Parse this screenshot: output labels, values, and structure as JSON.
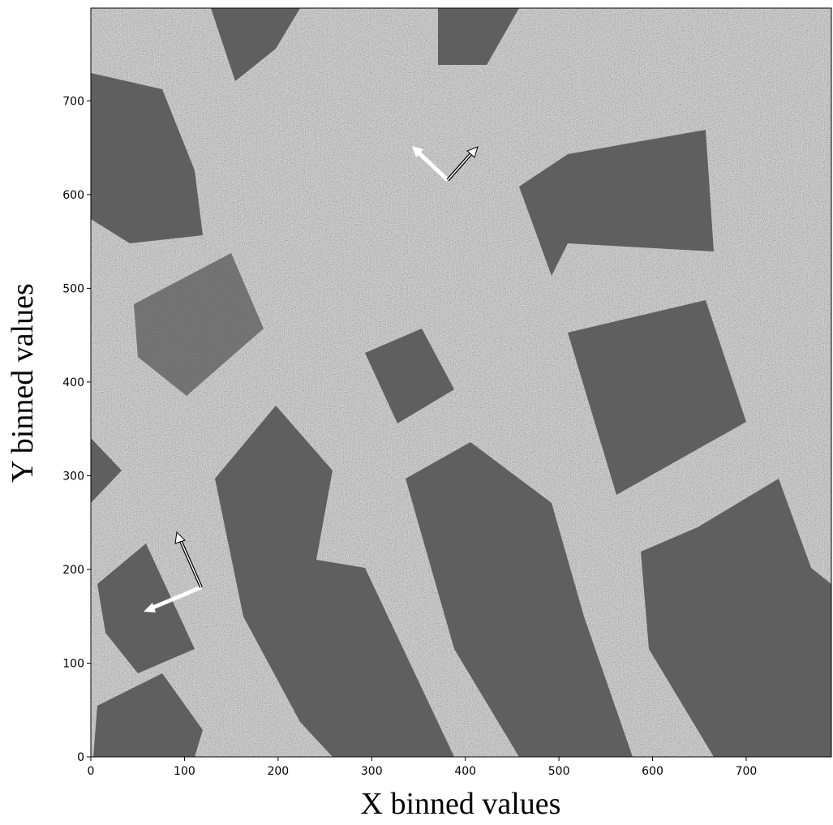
{
  "chart_data": {
    "type": "image",
    "xlabel": "X binned values",
    "ylabel": "Y binned values",
    "xlim": [
      0,
      791
    ],
    "ylim": [
      0,
      799
    ],
    "xticks": [
      0,
      100,
      200,
      300,
      400,
      500,
      600,
      700
    ],
    "yticks": [
      0,
      100,
      200,
      300,
      400,
      500,
      600,
      700
    ]
  }
}
